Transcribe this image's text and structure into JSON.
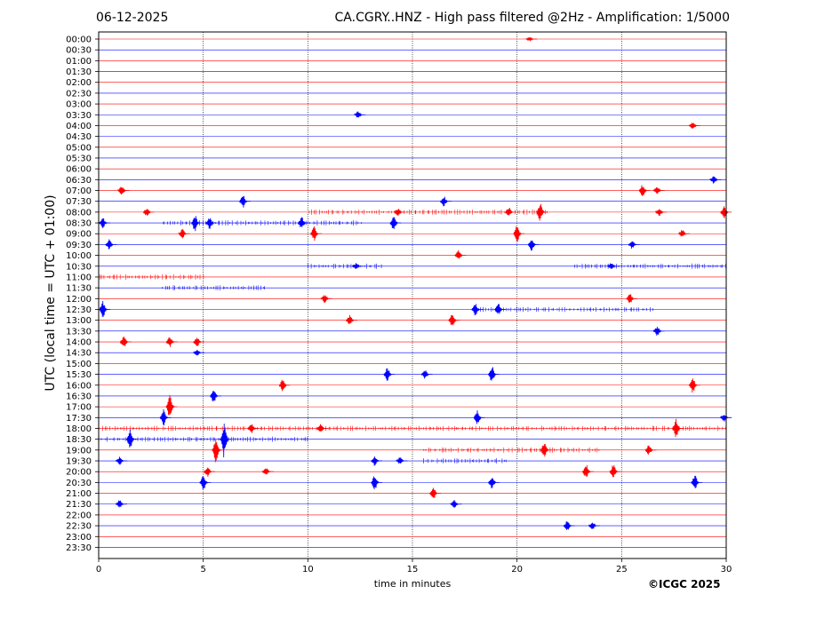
{
  "header": {
    "date": "06-12-2025",
    "title": "CA.CGRY..HNZ - High pass filtered @2Hz - Amplification: 1/5000"
  },
  "copyright": "©ICGC 2025",
  "chart_data": {
    "type": "line",
    "title": "CA.CGRY..HNZ - High pass filtered @2Hz - Amplification: 1/5000",
    "xlabel": "time in minutes",
    "ylabel": "UTC (local time = UTC + 01:00)",
    "xlim": [
      0,
      30
    ],
    "x_ticks": [
      0,
      5,
      10,
      15,
      20,
      25,
      30
    ],
    "grid": "vertical dotted at 5-minute intervals",
    "trace_colors": [
      "#ff0000",
      "#0000ff"
    ],
    "rows": [
      "00:00",
      "00:30",
      "01:00",
      "01:30",
      "02:00",
      "02:30",
      "03:00",
      "03:30",
      "04:00",
      "04:30",
      "05:00",
      "05:30",
      "06:00",
      "06:30",
      "07:00",
      "07:30",
      "08:00",
      "08:30",
      "09:00",
      "09:30",
      "10:00",
      "10:30",
      "11:00",
      "11:30",
      "12:00",
      "12:30",
      "13:00",
      "13:30",
      "14:00",
      "14:30",
      "15:00",
      "15:30",
      "16:00",
      "16:30",
      "17:00",
      "17:30",
      "18:00",
      "18:30",
      "19:00",
      "19:30",
      "20:00",
      "20:30",
      "21:00",
      "21:30",
      "22:00",
      "22:30",
      "23:00",
      "23:30"
    ],
    "events": [
      {
        "row": "00:00",
        "t": 20.6,
        "amp": 0.2
      },
      {
        "row": "03:30",
        "t": 12.4,
        "amp": 0.4
      },
      {
        "row": "04:00",
        "t": 28.4,
        "amp": 0.4
      },
      {
        "row": "06:30",
        "t": 29.4,
        "amp": 0.4
      },
      {
        "row": "07:00",
        "t": 1.1,
        "amp": 0.5
      },
      {
        "row": "07:00",
        "t": 26.0,
        "amp": 0.6
      },
      {
        "row": "07:00",
        "t": 26.7,
        "amp": 0.4
      },
      {
        "row": "07:30",
        "t": 6.9,
        "amp": 0.6
      },
      {
        "row": "07:30",
        "t": 16.5,
        "amp": 0.5
      },
      {
        "row": "08:00",
        "t": 2.3,
        "amp": 0.4
      },
      {
        "row": "08:00",
        "t": 14.3,
        "amp": 0.4
      },
      {
        "row": "08:00",
        "t": 19.6,
        "amp": 0.5
      },
      {
        "row": "08:00",
        "t": 21.1,
        "amp": 0.9
      },
      {
        "row": "08:00",
        "t": 26.8,
        "amp": 0.4
      },
      {
        "row": "08:00",
        "t": 29.9,
        "amp": 0.6
      },
      {
        "row": "08:30",
        "t": 0.2,
        "amp": 0.5
      },
      {
        "row": "08:30",
        "t": 4.6,
        "amp": 0.8
      },
      {
        "row": "08:30",
        "t": 5.3,
        "amp": 0.6
      },
      {
        "row": "08:30",
        "t": 9.7,
        "amp": 0.6
      },
      {
        "row": "08:30",
        "t": 14.1,
        "amp": 0.7
      },
      {
        "row": "09:00",
        "t": 4.0,
        "amp": 0.5
      },
      {
        "row": "09:00",
        "t": 10.3,
        "amp": 0.7
      },
      {
        "row": "09:00",
        "t": 20.0,
        "amp": 0.8
      },
      {
        "row": "09:00",
        "t": 27.9,
        "amp": 0.4
      },
      {
        "row": "09:30",
        "t": 0.5,
        "amp": 0.5
      },
      {
        "row": "09:30",
        "t": 20.7,
        "amp": 0.6
      },
      {
        "row": "09:30",
        "t": 25.5,
        "amp": 0.4
      },
      {
        "row": "10:00",
        "t": 17.2,
        "amp": 0.5
      },
      {
        "row": "10:30",
        "t": 12.3,
        "amp": 0.3
      },
      {
        "row": "10:30",
        "t": 24.5,
        "amp": 0.3
      },
      {
        "row": "12:00",
        "t": 10.8,
        "amp": 0.4
      },
      {
        "row": "12:00",
        "t": 25.4,
        "amp": 0.5
      },
      {
        "row": "12:30",
        "t": 0.2,
        "amp": 0.8
      },
      {
        "row": "12:30",
        "t": 18.0,
        "amp": 0.6
      },
      {
        "row": "12:30",
        "t": 19.1,
        "amp": 0.6
      },
      {
        "row": "13:00",
        "t": 12.0,
        "amp": 0.5
      },
      {
        "row": "13:00",
        "t": 16.9,
        "amp": 0.7
      },
      {
        "row": "13:30",
        "t": 26.7,
        "amp": 0.5
      },
      {
        "row": "14:00",
        "t": 1.2,
        "amp": 0.6
      },
      {
        "row": "14:00",
        "t": 3.4,
        "amp": 0.5
      },
      {
        "row": "14:00",
        "t": 4.7,
        "amp": 0.5
      },
      {
        "row": "14:30",
        "t": 4.7,
        "amp": 0.3
      },
      {
        "row": "15:30",
        "t": 13.8,
        "amp": 0.7
      },
      {
        "row": "15:30",
        "t": 15.6,
        "amp": 0.5
      },
      {
        "row": "15:30",
        "t": 18.8,
        "amp": 0.8
      },
      {
        "row": "16:00",
        "t": 8.8,
        "amp": 0.6
      },
      {
        "row": "16:00",
        "t": 28.4,
        "amp": 0.8
      },
      {
        "row": "16:30",
        "t": 5.5,
        "amp": 0.7
      },
      {
        "row": "17:00",
        "t": 3.4,
        "amp": 1.1
      },
      {
        "row": "17:30",
        "t": 3.1,
        "amp": 0.8
      },
      {
        "row": "17:30",
        "t": 18.1,
        "amp": 0.7
      },
      {
        "row": "17:30",
        "t": 29.9,
        "amp": 0.4
      },
      {
        "row": "18:00",
        "t": 7.3,
        "amp": 0.5
      },
      {
        "row": "18:00",
        "t": 10.6,
        "amp": 0.5
      },
      {
        "row": "18:00",
        "t": 27.6,
        "amp": 0.9
      },
      {
        "row": "18:30",
        "t": 1.5,
        "amp": 1.0
      },
      {
        "row": "18:30",
        "t": 6.0,
        "amp": 1.8
      },
      {
        "row": "19:00",
        "t": 5.6,
        "amp": 1.2
      },
      {
        "row": "19:00",
        "t": 21.3,
        "amp": 0.8
      },
      {
        "row": "19:00",
        "t": 26.3,
        "amp": 0.5
      },
      {
        "row": "19:30",
        "t": 1.0,
        "amp": 0.4
      },
      {
        "row": "19:30",
        "t": 13.2,
        "amp": 0.5
      },
      {
        "row": "19:30",
        "t": 14.4,
        "amp": 0.4
      },
      {
        "row": "20:00",
        "t": 5.2,
        "amp": 0.5
      },
      {
        "row": "20:00",
        "t": 8.0,
        "amp": 0.4
      },
      {
        "row": "20:00",
        "t": 23.3,
        "amp": 0.7
      },
      {
        "row": "20:00",
        "t": 24.6,
        "amp": 0.7
      },
      {
        "row": "20:30",
        "t": 5.0,
        "amp": 0.8
      },
      {
        "row": "20:30",
        "t": 13.2,
        "amp": 0.8
      },
      {
        "row": "20:30",
        "t": 18.8,
        "amp": 0.6
      },
      {
        "row": "20:30",
        "t": 28.5,
        "amp": 0.8
      },
      {
        "row": "21:00",
        "t": 16.0,
        "amp": 0.6
      },
      {
        "row": "21:30",
        "t": 1.0,
        "amp": 0.4
      },
      {
        "row": "21:30",
        "t": 17.0,
        "amp": 0.4
      },
      {
        "row": "22:30",
        "t": 22.4,
        "amp": 0.5
      },
      {
        "row": "22:30",
        "t": 23.6,
        "amp": 0.4
      }
    ],
    "noisy_spans": [
      {
        "row": "08:00",
        "from": 10.0,
        "to": 21.5
      },
      {
        "row": "08:30",
        "from": 3.0,
        "to": 12.5
      },
      {
        "row": "10:30",
        "from": 10.0,
        "to": 13.5
      },
      {
        "row": "10:30",
        "from": 22.7,
        "to": 30.0
      },
      {
        "row": "11:00",
        "from": 0.0,
        "to": 5.0
      },
      {
        "row": "11:30",
        "from": 3.0,
        "to": 8.0
      },
      {
        "row": "12:30",
        "from": 18.0,
        "to": 26.5
      },
      {
        "row": "18:00",
        "from": 0.0,
        "to": 30.0
      },
      {
        "row": "18:30",
        "from": 0.0,
        "to": 10.0
      },
      {
        "row": "19:00",
        "from": 15.5,
        "to": 24.0
      },
      {
        "row": "19:30",
        "from": 15.5,
        "to": 19.5
      }
    ]
  }
}
